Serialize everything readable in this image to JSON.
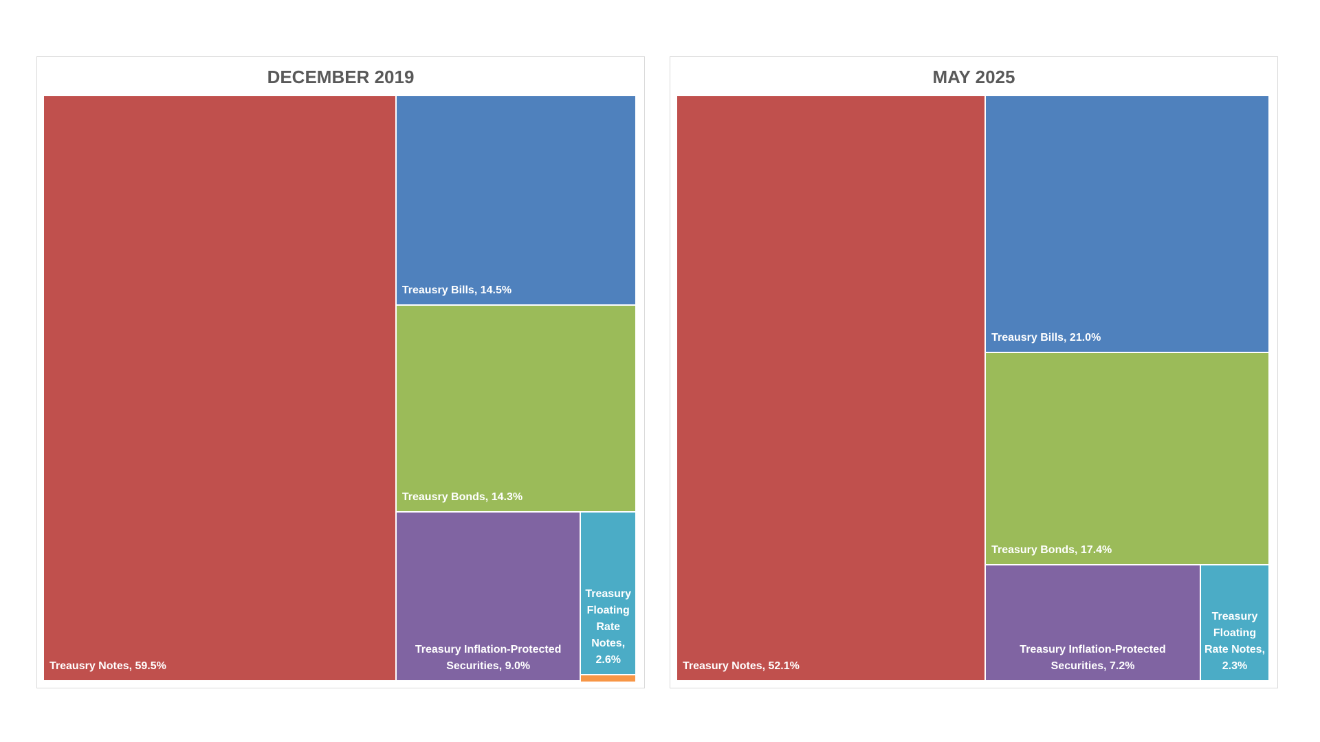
{
  "colors": {
    "treasury_notes": "#C0504D",
    "treasury_bills": "#4F81BD",
    "treasury_bonds": "#9BBB59",
    "tips": "#8064A2",
    "frn": "#4BACC6",
    "other": "#F79646"
  },
  "chart_data": [
    {
      "type": "treemap",
      "title": "DECEMBER 2019",
      "items": [
        {
          "name": "Treasury Notes",
          "value": 59.5,
          "label": "Treausry Notes, 59.5%",
          "color_key": "treasury_notes"
        },
        {
          "name": "Treasury Bills",
          "value": 14.5,
          "label": "Treausry Bills, 14.5%",
          "color_key": "treasury_bills"
        },
        {
          "name": "Treasury Bonds",
          "value": 14.3,
          "label": "Treausry Bonds, 14.3%",
          "color_key": "treasury_bonds"
        },
        {
          "name": "Treasury Inflation-Protected Securities",
          "value": 9.0,
          "label": "Treasury Inflation-Protected Securities, 9.0%",
          "color_key": "tips"
        },
        {
          "name": "Treasury Floating Rate Notes",
          "value": 2.6,
          "label": "Treasury Floating Rate Notes, 2.6%",
          "color_key": "frn"
        },
        {
          "name": "",
          "value": 0.1,
          "label": "",
          "color_key": "other"
        }
      ]
    },
    {
      "type": "treemap",
      "title": "MAY 2025",
      "items": [
        {
          "name": "Treasury Notes",
          "value": 52.1,
          "label": "Treasury Notes, 52.1%",
          "color_key": "treasury_notes"
        },
        {
          "name": "Treasury Bills",
          "value": 21.0,
          "label": "Treausry Bills, 21.0%",
          "color_key": "treasury_bills"
        },
        {
          "name": "Treasury Bonds",
          "value": 17.4,
          "label": "Treasury Bonds, 17.4%",
          "color_key": "treasury_bonds"
        },
        {
          "name": "Treasury Inflation-Protected Securities",
          "value": 7.2,
          "label": "Treasury Inflation-Protected Securities, 7.2%",
          "color_key": "tips"
        },
        {
          "name": "Treasury Floating Rate Notes",
          "value": 2.3,
          "label": "Treasury Floating Rate Notes, 2.3%",
          "color_key": "frn"
        }
      ]
    }
  ]
}
